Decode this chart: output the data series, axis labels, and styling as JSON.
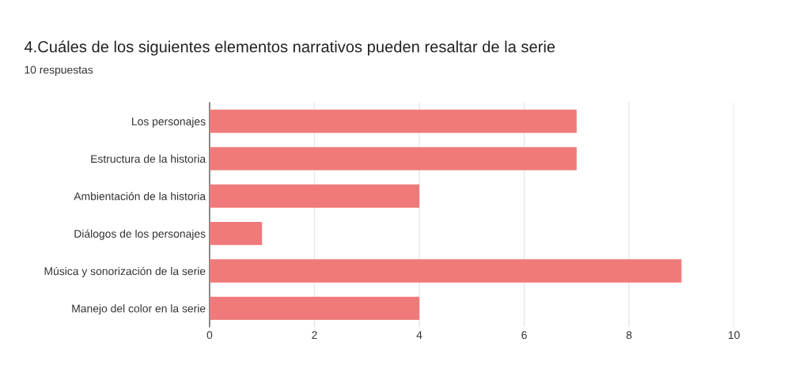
{
  "chart_data": {
    "type": "bar",
    "orientation": "horizontal",
    "title": "4.Cuáles de los siguientes elementos narrativos pueden resaltar de la serie",
    "subtitle": "10 respuestas",
    "categories": [
      "Los personajes",
      "Estructura de la historia",
      "Ambientación de la historia",
      "Diálogos de los personajes",
      "Música y sonorización de la serie",
      "Manejo del color en la serie"
    ],
    "values": [
      7,
      7,
      4,
      1,
      9,
      4
    ],
    "color": "#f07a7a",
    "xlim": [
      0,
      10
    ],
    "xticks": [
      0,
      2,
      4,
      6,
      8,
      10
    ],
    "grid": "x"
  }
}
